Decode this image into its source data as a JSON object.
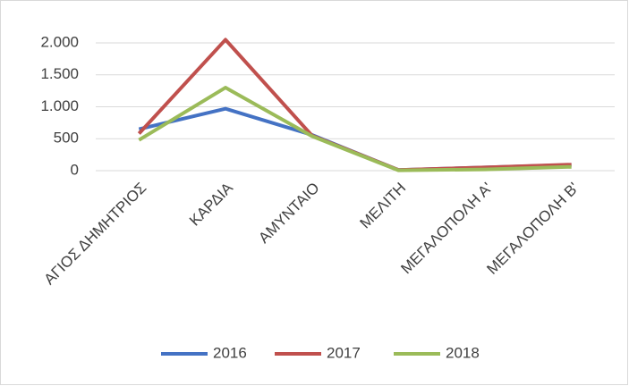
{
  "chart_data": {
    "type": "line",
    "categories": [
      "ΑΓΙΟΣ ΔΗΜΗΤΡΙΟΣ",
      "ΚΑΡΔΙΑ",
      "ΑΜΥΝΤΑΙΟ",
      "ΜΕΛΙΤΗ",
      "ΜΕΓΑΛΟΠΟΛΗ Α'",
      "ΜΕΓΑΛΟΠΟΛΗ Β'"
    ],
    "series": [
      {
        "name": "2016",
        "color": "#4472c4",
        "values": [
          650,
          970,
          560,
          10,
          50,
          90
        ]
      },
      {
        "name": "2017",
        "color": "#c0504d",
        "values": [
          580,
          2050,
          550,
          10,
          50,
          95
        ]
      },
      {
        "name": "2018",
        "color": "#9bbb59",
        "values": [
          480,
          1300,
          540,
          5,
          20,
          60
        ]
      }
    ],
    "ylim": [
      0,
      2000
    ],
    "yticks": [
      0,
      500,
      {
        "value": 1000,
        "label": "1.000"
      },
      {
        "value": 1500,
        "label": "1.500"
      },
      {
        "value": 2000,
        "label": "2.000"
      }
    ],
    "grid": true,
    "legend": "bottom"
  }
}
